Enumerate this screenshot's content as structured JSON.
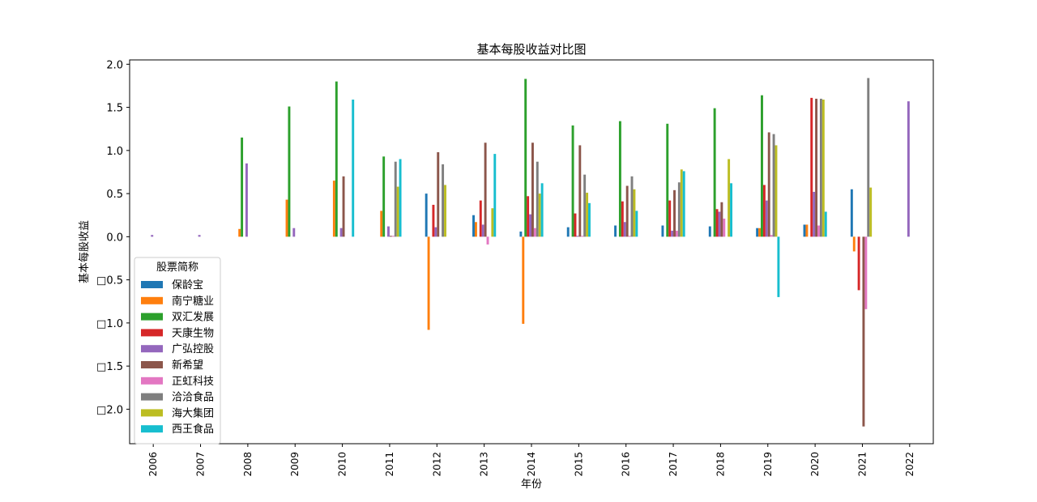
{
  "chart_data": {
    "type": "bar",
    "title": "基本每股收益对比图",
    "xlabel": "年份",
    "ylabel": "基本每股收益",
    "categories": [
      "2006",
      "2007",
      "2008",
      "2009",
      "2010",
      "2011",
      "2012",
      "2013",
      "2014",
      "2015",
      "2016",
      "2017",
      "2018",
      "2019",
      "2020",
      "2021",
      "2022"
    ],
    "ylim": [
      -2.4,
      2.05
    ],
    "yticks": [
      -2.0,
      -1.5,
      -1.0,
      -0.5,
      0.0,
      0.5,
      1.0,
      1.5,
      2.0
    ],
    "ytick_labels": [
      "□2.0",
      "□1.5",
      "□1.0",
      "□0.5",
      "0.0",
      "0.5",
      "1.0",
      "1.5",
      "2.0"
    ],
    "legend": {
      "title": "股票简称",
      "placement": "lower-left"
    },
    "grid": false,
    "series": [
      {
        "name": "保龄宝",
        "color": "#1f77b4",
        "values": [
          null,
          null,
          null,
          null,
          null,
          null,
          0.5,
          0.25,
          0.06,
          0.11,
          0.13,
          0.13,
          0.12,
          0.1,
          0.14,
          0.55,
          null
        ]
      },
      {
        "name": "南宁糖业",
        "color": "#ff7f0e",
        "values": [
          null,
          null,
          0.09,
          0.43,
          0.65,
          0.3,
          -1.08,
          0.17,
          -1.01,
          null,
          null,
          null,
          null,
          0.1,
          0.14,
          -0.17,
          null
        ]
      },
      {
        "name": "双汇发展",
        "color": "#2ca02c",
        "values": [
          null,
          null,
          1.15,
          1.51,
          1.8,
          0.93,
          null,
          null,
          1.83,
          1.29,
          1.34,
          1.31,
          1.49,
          1.64,
          null,
          null,
          null
        ]
      },
      {
        "name": "天康生物",
        "color": "#d62728",
        "values": [
          null,
          null,
          null,
          null,
          null,
          null,
          0.37,
          0.42,
          0.47,
          0.27,
          0.41,
          0.42,
          0.32,
          0.6,
          1.61,
          -0.62,
          null
        ]
      },
      {
        "name": "广弘控股",
        "color": "#9467bd",
        "values": [
          0.02,
          0.02,
          0.85,
          0.1,
          0.1,
          0.12,
          0.11,
          0.14,
          0.26,
          0.01,
          0.17,
          0.07,
          0.29,
          0.42,
          0.52,
          null,
          1.57
        ]
      },
      {
        "name": "新希望",
        "color": "#8c564b",
        "values": [
          null,
          null,
          null,
          null,
          0.7,
          0.01,
          0.98,
          1.09,
          1.09,
          1.06,
          0.59,
          0.54,
          0.4,
          1.21,
          1.6,
          -2.2,
          null
        ]
      },
      {
        "name": "正虹科技",
        "color": "#e377c2",
        "values": [
          null,
          null,
          null,
          null,
          null,
          0.01,
          null,
          -0.09,
          0.1,
          0.01,
          0.01,
          0.07,
          0.21,
          0.02,
          0.13,
          -0.84,
          null
        ]
      },
      {
        "name": "洽洽食品",
        "color": "#7f7f7f",
        "values": [
          null,
          null,
          null,
          null,
          null,
          0.87,
          0.84,
          null,
          0.87,
          0.72,
          0.7,
          0.63,
          null,
          1.19,
          1.6,
          1.84,
          null
        ]
      },
      {
        "name": "海大集团",
        "color": "#bcbd22",
        "values": [
          null,
          null,
          null,
          null,
          null,
          0.58,
          0.6,
          0.33,
          0.5,
          0.51,
          0.55,
          0.78,
          0.9,
          1.06,
          1.59,
          0.57,
          null
        ]
      },
      {
        "name": "西王食品",
        "color": "#17becf",
        "values": [
          null,
          null,
          null,
          null,
          1.59,
          0.9,
          null,
          0.96,
          0.62,
          0.39,
          0.3,
          0.76,
          0.62,
          -0.7,
          0.29,
          null,
          null
        ]
      }
    ]
  }
}
